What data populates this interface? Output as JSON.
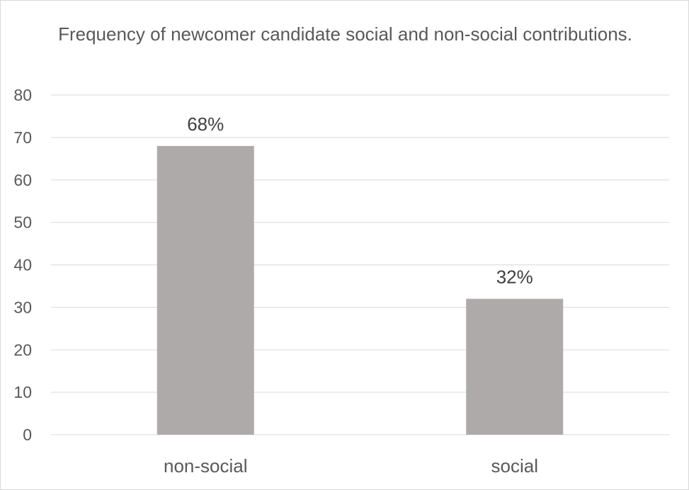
{
  "chart_data": {
    "type": "bar",
    "title": "Frequency of newcomer candidate social and non-social contributions.",
    "categories": [
      "non-social",
      "social"
    ],
    "values": [
      68,
      32
    ],
    "data_labels": [
      "68%",
      "32%"
    ],
    "xlabel": "",
    "ylabel": "",
    "ylim": [
      0,
      80
    ],
    "yticks": [
      0,
      10,
      20,
      30,
      40,
      50,
      60,
      70,
      80
    ],
    "grid": true,
    "legend": "none",
    "colors": {
      "bar": "#aeaaaa",
      "grid": "#d9d9d9",
      "text": "#595959",
      "data_label": "#404040"
    }
  }
}
